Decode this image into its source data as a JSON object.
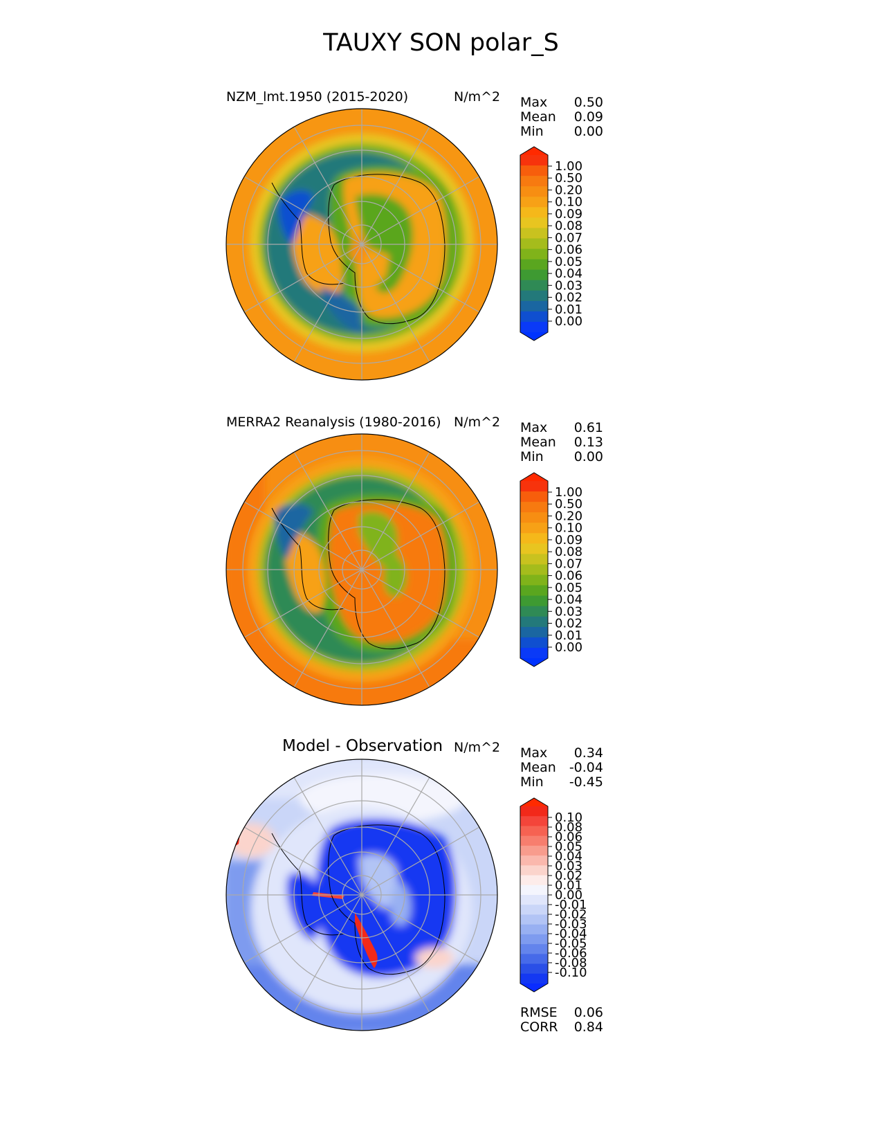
{
  "figure_title": "TAUXY SON polar_S",
  "panels": [
    {
      "title": "NZM_lmt.1950 (2015-2020)",
      "units": "N/m^2",
      "stats": [
        {
          "label": "Max",
          "value": "0.50"
        },
        {
          "label": "Mean",
          "value": "0.09"
        },
        {
          "label": "Min",
          "value": "0.00"
        }
      ],
      "colorbar": {
        "ticks": [
          "1.00",
          "0.50",
          "0.20",
          "0.10",
          "0.09",
          "0.08",
          "0.07",
          "0.06",
          "0.05",
          "0.04",
          "0.03",
          "0.02",
          "0.01",
          "0.00"
        ],
        "colors": [
          "#f7330c",
          "#f75e0c",
          "#f77a10",
          "#f78e12",
          "#f7a116",
          "#f5b81a",
          "#e8c520",
          "#c9c21f",
          "#a5bc1c",
          "#80b31a",
          "#5aa61f",
          "#3e9a32",
          "#2f8a55",
          "#23797a",
          "#1a66a1",
          "#0f4fd0",
          "#0a3af7"
        ],
        "top_color": "#ff2a00",
        "bottom_color": "#0033ff"
      }
    },
    {
      "title": "MERRA2 Reanalysis (1980-2016)",
      "units": "N/m^2",
      "stats": [
        {
          "label": "Max",
          "value": "0.61"
        },
        {
          "label": "Mean",
          "value": "0.13"
        },
        {
          "label": "Min",
          "value": "0.00"
        }
      ],
      "colorbar": {
        "ticks": [
          "1.00",
          "0.50",
          "0.20",
          "0.10",
          "0.09",
          "0.08",
          "0.07",
          "0.06",
          "0.05",
          "0.04",
          "0.03",
          "0.02",
          "0.01",
          "0.00"
        ],
        "colors": [
          "#f7330c",
          "#f75e0c",
          "#f77a10",
          "#f78e12",
          "#f7a116",
          "#f5b81a",
          "#e8c520",
          "#c9c21f",
          "#a5bc1c",
          "#80b31a",
          "#5aa61f",
          "#3e9a32",
          "#2f8a55",
          "#23797a",
          "#1a66a1",
          "#0f4fd0",
          "#0a3af7"
        ],
        "top_color": "#ff2a00",
        "bottom_color": "#0033ff"
      }
    },
    {
      "title": "Model - Observation",
      "units": "N/m^2",
      "stats": [
        {
          "label": "Max",
          "value": "0.34"
        },
        {
          "label": "Mean",
          "value": "-0.04"
        },
        {
          "label": "Min",
          "value": "-0.45"
        }
      ],
      "colorbar": {
        "ticks": [
          "0.10",
          "0.08",
          "0.06",
          "0.05",
          "0.04",
          "0.03",
          "0.02",
          "0.01",
          "0.00",
          "-0.01",
          "-0.02",
          "-0.03",
          "-0.04",
          "-0.05",
          "-0.06",
          "-0.08",
          "-0.10"
        ],
        "colors": [
          "#f2291a",
          "#f4453a",
          "#f66252",
          "#f77e6e",
          "#f89c8d",
          "#fab8ad",
          "#fbd4cc",
          "#fdecea",
          "#f4f5fd",
          "#e0e6fb",
          "#cad6f8",
          "#b2c4f5",
          "#98b0f2",
          "#7e9bef",
          "#6384ec",
          "#466ae9",
          "#2a4fe7",
          "#1438f2"
        ],
        "top_color": "#ff2a00",
        "bottom_color": "#0a2cff"
      },
      "metrics": [
        {
          "label": "RMSE",
          "value": "0.06"
        },
        {
          "label": "CORR",
          "value": "0.84"
        }
      ]
    }
  ],
  "chart_data": [
    {
      "type": "heatmap",
      "title": "NZM_lmt.1950 (2015-2020)",
      "projection": "south-polar-stereographic",
      "variable": "TAUXY",
      "season": "SON",
      "region": "polar_S",
      "units": "N/m^2",
      "stats": {
        "max": 0.5,
        "mean": 0.09,
        "min": 0.0
      },
      "color_levels": [
        0.0,
        0.01,
        0.02,
        0.03,
        0.04,
        0.05,
        0.06,
        0.07,
        0.08,
        0.09,
        0.1,
        0.2,
        0.5,
        1.0
      ]
    },
    {
      "type": "heatmap",
      "title": "MERRA2 Reanalysis (1980-2016)",
      "projection": "south-polar-stereographic",
      "variable": "TAUXY",
      "season": "SON",
      "region": "polar_S",
      "units": "N/m^2",
      "stats": {
        "max": 0.61,
        "mean": 0.13,
        "min": 0.0
      },
      "color_levels": [
        0.0,
        0.01,
        0.02,
        0.03,
        0.04,
        0.05,
        0.06,
        0.07,
        0.08,
        0.09,
        0.1,
        0.2,
        0.5,
        1.0
      ]
    },
    {
      "type": "heatmap",
      "title": "Model - Observation",
      "projection": "south-polar-stereographic",
      "variable": "TAUXY",
      "season": "SON",
      "region": "polar_S",
      "units": "N/m^2",
      "stats": {
        "max": 0.34,
        "mean": -0.04,
        "min": -0.45
      },
      "metrics": {
        "rmse": 0.06,
        "corr": 0.84
      },
      "color_levels": [
        -0.1,
        -0.08,
        -0.06,
        -0.05,
        -0.04,
        -0.03,
        -0.02,
        -0.01,
        0.0,
        0.01,
        0.02,
        0.03,
        0.04,
        0.05,
        0.06,
        0.08,
        0.1
      ]
    }
  ]
}
